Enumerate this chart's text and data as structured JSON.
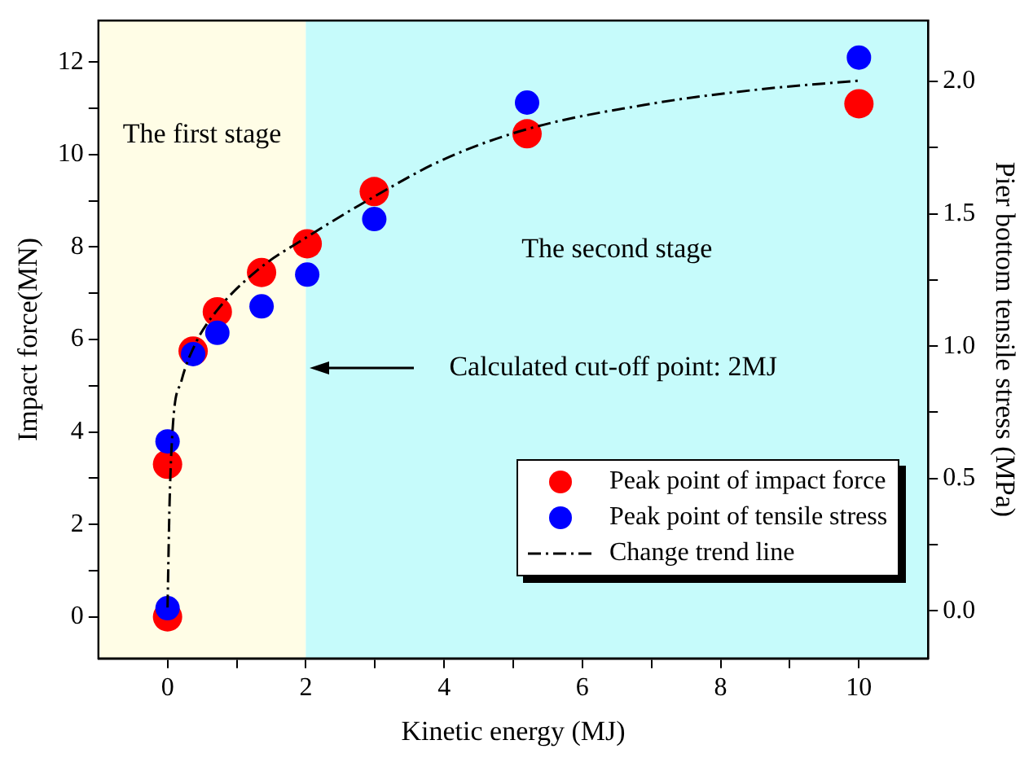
{
  "chart_data": {
    "type": "scatter",
    "xlabel": "Kinetic energy (MJ)",
    "ylabel": "Impact force(MN)",
    "y2label": "Pier bottom tensile stress (MPa)",
    "xlim": [
      -1,
      11
    ],
    "xticks": [
      0,
      {
        "value": 1,
        "label": null
      },
      2,
      {
        "value": 3,
        "label": null
      },
      4,
      {
        "value": 5,
        "label": null
      },
      6,
      {
        "value": 7,
        "label": null
      },
      8,
      {
        "value": 9,
        "label": null
      },
      10
    ],
    "ylim": [
      -0.9,
      12.9
    ],
    "yticks": [
      0,
      {
        "value": 1,
        "label": null
      },
      2,
      {
        "value": 3,
        "label": null
      },
      4,
      {
        "value": 5,
        "label": null
      },
      6,
      {
        "value": 7,
        "label": null
      },
      8,
      {
        "value": 9,
        "label": null
      },
      10,
      {
        "value": 11,
        "label": null
      },
      12
    ],
    "y2lim": [
      -0.18,
      2.23
    ],
    "y2ticks": [
      {
        "value": 0,
        "label": "0.0"
      },
      {
        "value": 0.25,
        "label": null
      },
      0.5,
      {
        "value": 0.75,
        "label": null
      },
      {
        "value": 1,
        "label": "1.0"
      },
      {
        "value": 1.25,
        "label": null
      },
      1.5,
      {
        "value": 1.75,
        "label": null
      },
      {
        "value": 2,
        "label": "2.0"
      }
    ],
    "series": [
      {
        "name": "Peak point of impact force",
        "color": "#ff0000",
        "marker": "circle",
        "x": [
          0,
          0,
          0.37,
          0.72,
          1.36,
          2.02,
          2.99,
          5.2,
          10
        ],
        "values": [
          0,
          3.3,
          5.75,
          6.6,
          7.45,
          8.07,
          9.2,
          10.45,
          11.1
        ]
      },
      {
        "name": "Peak point of tensile stress",
        "color": "#0000ff",
        "marker": "circle",
        "axis": "y2",
        "x": [
          0,
          0,
          0.37,
          0.72,
          1.36,
          2.02,
          2.99,
          5.2,
          10
        ],
        "values": [
          0.01,
          0.64,
          0.97,
          1.05,
          1.15,
          1.27,
          1.48,
          1.92,
          2.09
        ]
      },
      {
        "name": "Change trend line",
        "color": "#000000",
        "type": "line",
        "marker": "none",
        "line_style": "dashed",
        "x": [
          0,
          0.03,
          0.08,
          0.2,
          0.4,
          0.7,
          1.3,
          2,
          3,
          4,
          5.2,
          7,
          8.5,
          10
        ],
        "values": [
          0.2,
          2.5,
          4.2,
          5.1,
          5.9,
          6.6,
          7.5,
          8.2,
          9.1,
          9.9,
          10.55,
          11.1,
          11.4,
          11.6
        ]
      }
    ],
    "bands": [
      {
        "axis": "x",
        "from": -1,
        "to": 2,
        "label": "The first stage",
        "color": "#fffde6"
      },
      {
        "axis": "x",
        "from": 2,
        "to": 11,
        "label": "The second stage",
        "color": "#c6fbfb"
      }
    ],
    "annotations": [
      "Calculated cut-off point: 2MJ"
    ],
    "legend": "bottom right",
    "grid": false
  }
}
